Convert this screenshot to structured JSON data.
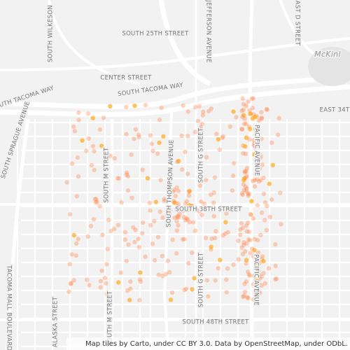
{
  "map": {
    "street_labels": [
      "SOUTH WILKESON",
      "SOUTH 25TH STREET",
      "CENTER STREET",
      "SOUTH TACOMA WAY",
      "SOUTH TACOMA WAY",
      "SOUTH SPRAGUE AVENUE",
      "EAST 34T",
      "SOUTH M STREET",
      "SOUTH THOMPSON AVENUE",
      "SOUTH G STREET",
      "PACIFIC AVENUE",
      "SOUTH 38TH STREET",
      "SOUTH 48TH STREET",
      "ALASKA STREET",
      "TACOMA MALL BOULEVARD",
      "SOUTH M STREET",
      "SOUTH G STREET",
      "PACIFIC AVENUE",
      "JEFFERSON AVENUE",
      "EAST D STREET",
      "McKinl"
    ],
    "attribution": "Map tiles by Carto, under CC BY 3.0. Data by OpenStreetMap, under ODbL."
  }
}
